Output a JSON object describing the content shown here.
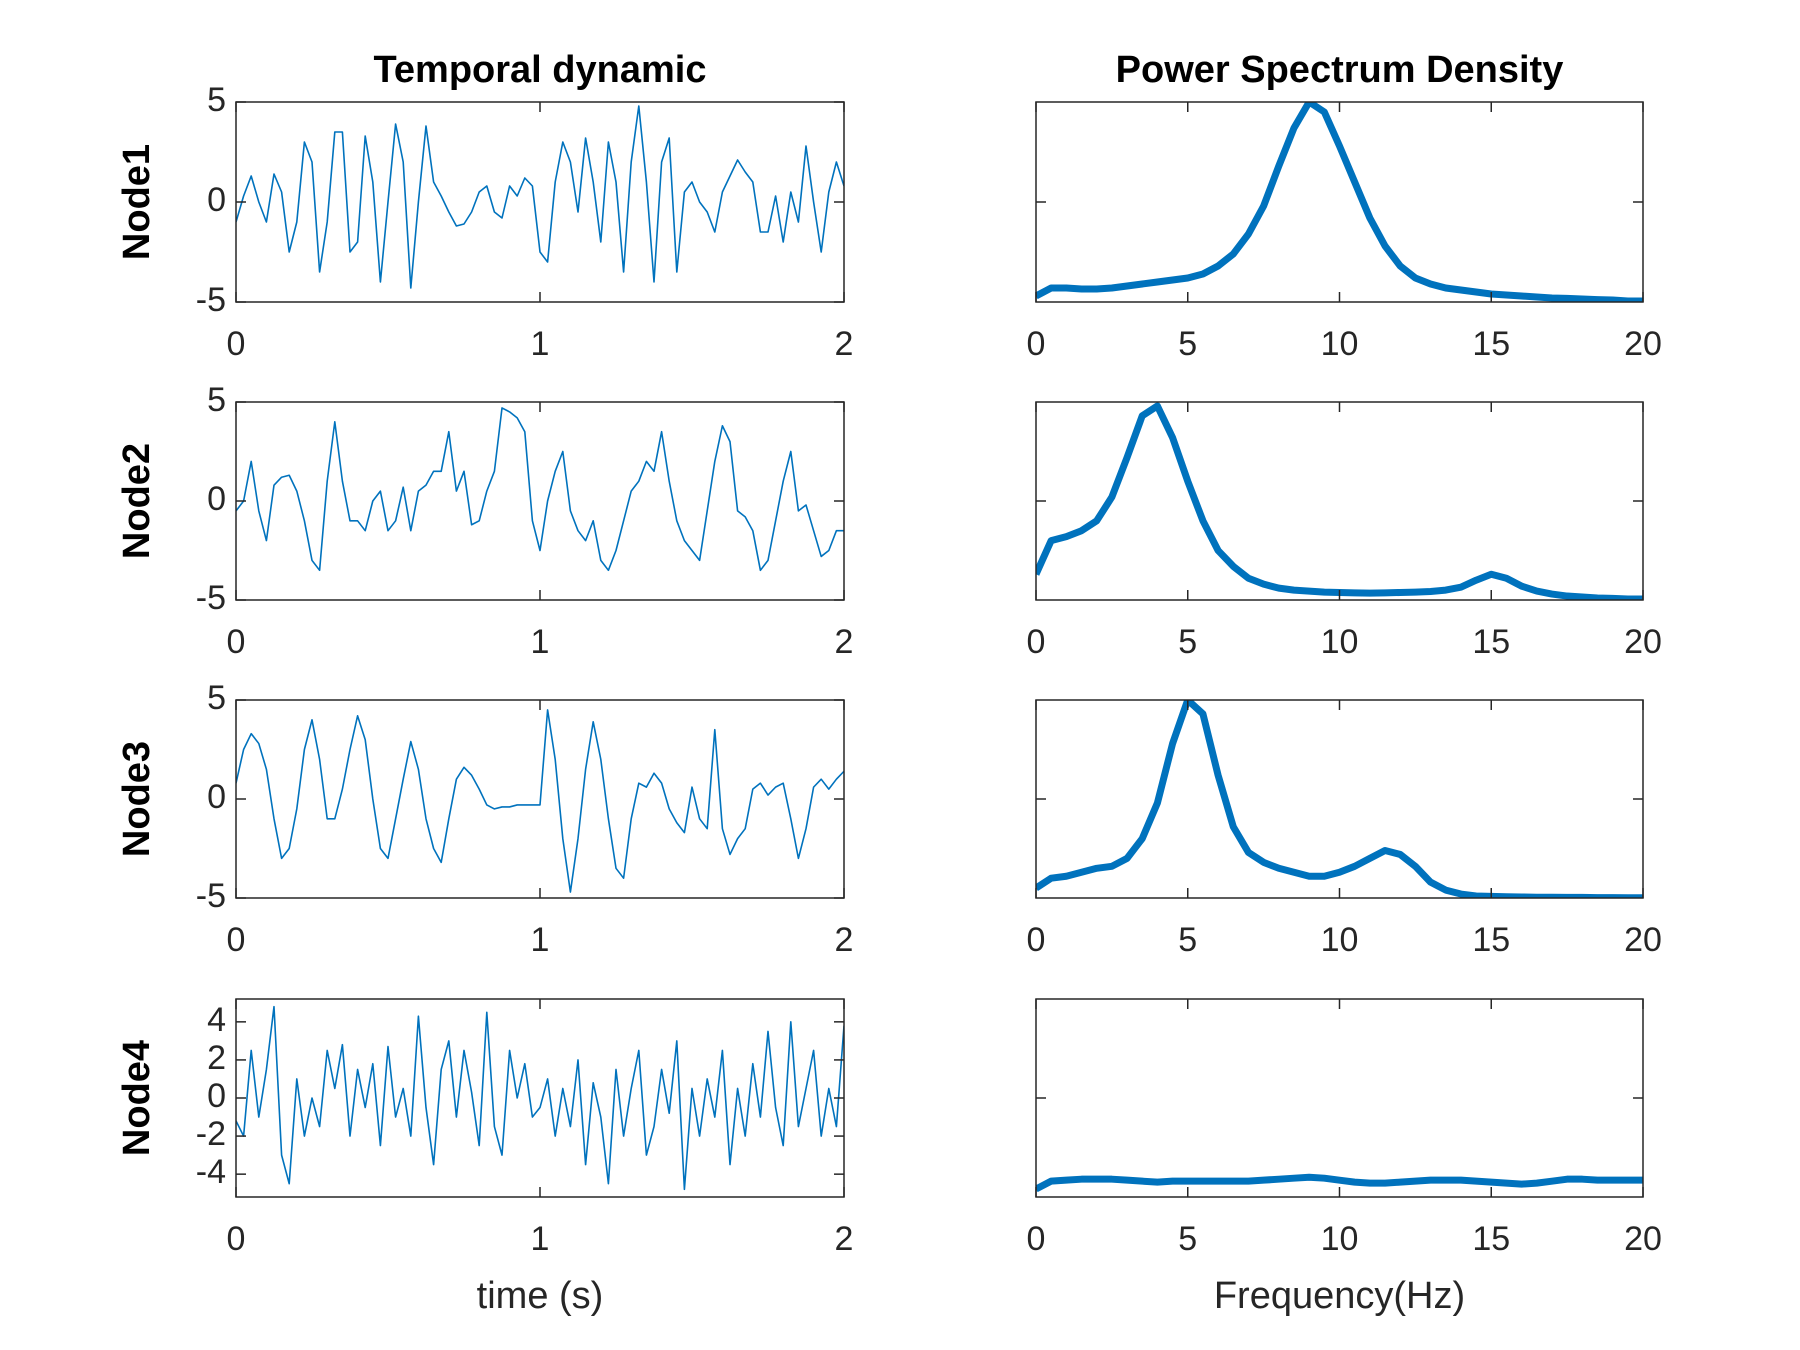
{
  "chart_data": [
    {
      "type": "line",
      "title": "Temporal dynamic",
      "ylabel": "Node1",
      "color": "#0072bd",
      "x": [
        0,
        0.025,
        0.05,
        0.075,
        0.1,
        0.125,
        0.15,
        0.175,
        0.2,
        0.225,
        0.25,
        0.275,
        0.3,
        0.325,
        0.35,
        0.375,
        0.4,
        0.425,
        0.45,
        0.475,
        0.5,
        0.525,
        0.55,
        0.575,
        0.6,
        0.625,
        0.65,
        0.675,
        0.7,
        0.725,
        0.75,
        0.775,
        0.8,
        0.825,
        0.85,
        0.875,
        0.9,
        0.925,
        0.95,
        0.975,
        1,
        1.025,
        1.05,
        1.075,
        1.1,
        1.125,
        1.15,
        1.175,
        1.2,
        1.225,
        1.25,
        1.275,
        1.3,
        1.325,
        1.35,
        1.375,
        1.4,
        1.425,
        1.45,
        1.475,
        1.5,
        1.525,
        1.55,
        1.575,
        1.6,
        1.625,
        1.65,
        1.675,
        1.7,
        1.725,
        1.75,
        1.775,
        1.8,
        1.825,
        1.85,
        1.875,
        1.9,
        1.925,
        1.95,
        1.975,
        2
      ],
      "values": [
        -1,
        0.3,
        1.3,
        0,
        -1,
        1.4,
        0.5,
        -2.5,
        -1,
        3,
        2,
        -3.5,
        -1,
        3.5,
        3.5,
        -2.5,
        -2,
        3.3,
        1,
        -4,
        0,
        3.9,
        2,
        -4.3,
        0,
        3.8,
        1,
        0.3,
        -0.5,
        -1.2,
        -1.1,
        -0.5,
        0.5,
        0.8,
        -0.5,
        -0.8,
        0.8,
        0.3,
        1.2,
        0.8,
        -2.5,
        -3,
        1,
        3,
        2,
        -0.5,
        3.2,
        1,
        -2,
        3,
        1,
        -3.5,
        2,
        4.8,
        1,
        -4,
        2,
        3.2,
        -3.5,
        0.5,
        1,
        0,
        -0.5,
        -1.5,
        0.5,
        1.3,
        2.1,
        1.5,
        1,
        -1.5,
        -1.5,
        0.3,
        -2,
        0.5,
        -1,
        2.8,
        0,
        -2.5,
        0.5,
        2,
        0.8
      ],
      "xlim": [
        0,
        2
      ],
      "xticks": [
        0,
        1,
        2
      ],
      "ylim": [
        -5,
        5
      ],
      "yticks": [
        -5,
        0,
        5
      ]
    },
    {
      "type": "line",
      "title": "Power Spectrum Density",
      "color": "#0072bd",
      "x": [
        0,
        0.5,
        1,
        1.5,
        2,
        2.5,
        3,
        3.5,
        4,
        4.5,
        5,
        5.5,
        6,
        6.5,
        7,
        7.5,
        8,
        8.5,
        9,
        9.5,
        10,
        10.5,
        11,
        11.5,
        12,
        12.5,
        13,
        13.5,
        14,
        14.5,
        15,
        15.5,
        16,
        16.5,
        17,
        17.5,
        18,
        18.5,
        19,
        19.5,
        20
      ],
      "values": [
        0.03,
        0.07,
        0.07,
        0.065,
        0.065,
        0.07,
        0.08,
        0.09,
        0.1,
        0.11,
        0.12,
        0.14,
        0.18,
        0.24,
        0.34,
        0.48,
        0.68,
        0.87,
        1.0,
        0.95,
        0.78,
        0.6,
        0.42,
        0.28,
        0.18,
        0.12,
        0.09,
        0.07,
        0.06,
        0.05,
        0.04,
        0.035,
        0.03,
        0.025,
        0.02,
        0.018,
        0.015,
        0.012,
        0.01,
        0.005,
        0.005
      ],
      "xlim": [
        0,
        20
      ],
      "xticks": [
        0,
        5,
        10,
        15,
        20
      ],
      "ylim": [
        0,
        1
      ]
    },
    {
      "type": "line",
      "ylabel": "Node2",
      "color": "#0072bd",
      "x": [
        0,
        0.025,
        0.05,
        0.075,
        0.1,
        0.125,
        0.15,
        0.175,
        0.2,
        0.225,
        0.25,
        0.275,
        0.3,
        0.325,
        0.35,
        0.375,
        0.4,
        0.425,
        0.45,
        0.475,
        0.5,
        0.525,
        0.55,
        0.575,
        0.6,
        0.625,
        0.65,
        0.675,
        0.7,
        0.725,
        0.75,
        0.775,
        0.8,
        0.825,
        0.85,
        0.875,
        0.9,
        0.925,
        0.95,
        0.975,
        1,
        1.025,
        1.05,
        1.075,
        1.1,
        1.125,
        1.15,
        1.175,
        1.2,
        1.225,
        1.25,
        1.275,
        1.3,
        1.325,
        1.35,
        1.375,
        1.4,
        1.425,
        1.45,
        1.475,
        1.5,
        1.525,
        1.55,
        1.575,
        1.6,
        1.625,
        1.65,
        1.675,
        1.7,
        1.725,
        1.75,
        1.775,
        1.8,
        1.825,
        1.85,
        1.875,
        1.9,
        1.925,
        1.95,
        1.975,
        2
      ],
      "values": [
        -0.5,
        0,
        2,
        -0.5,
        -2,
        0.8,
        1.2,
        1.3,
        0.5,
        -1,
        -3,
        -3.5,
        1,
        4,
        1,
        -1,
        -1,
        -1.5,
        0,
        0.5,
        -1.5,
        -1,
        0.7,
        -1.5,
        0.5,
        0.8,
        1.5,
        1.5,
        3.5,
        0.5,
        1.5,
        -1.2,
        -1,
        0.5,
        1.5,
        4.7,
        4.5,
        4.2,
        3.5,
        -1,
        -2.5,
        0,
        1.5,
        2.5,
        -0.5,
        -1.5,
        -2,
        -1,
        -3,
        -3.5,
        -2.5,
        -1,
        0.5,
        1,
        2,
        1.5,
        3.5,
        1,
        -1,
        -2,
        -2.5,
        -3,
        -0.5,
        2,
        3.8,
        3,
        -0.5,
        -0.8,
        -1.5,
        -3.5,
        -3,
        -1,
        1,
        2.5,
        -0.5,
        -0.2,
        -1.5,
        -2.8,
        -2.5,
        -1.5,
        -1.5
      ],
      "xlim": [
        0,
        2
      ],
      "xticks": [
        0,
        1,
        2
      ],
      "ylim": [
        -5,
        5
      ],
      "yticks": [
        -5,
        0,
        5
      ]
    },
    {
      "type": "line",
      "color": "#0072bd",
      "x": [
        0,
        0.5,
        1,
        1.5,
        2,
        2.5,
        3,
        3.5,
        4,
        4.5,
        5,
        5.5,
        6,
        6.5,
        7,
        7.5,
        8,
        8.5,
        9,
        9.5,
        10,
        10.5,
        11,
        11.5,
        12,
        12.5,
        13,
        13.5,
        14,
        14.5,
        15,
        15.5,
        16,
        16.5,
        17,
        17.5,
        18,
        18.5,
        19,
        19.5,
        20
      ],
      "values": [
        0.13,
        0.3,
        0.32,
        0.35,
        0.4,
        0.52,
        0.72,
        0.93,
        0.98,
        0.82,
        0.6,
        0.4,
        0.25,
        0.17,
        0.11,
        0.08,
        0.06,
        0.05,
        0.045,
        0.04,
        0.038,
        0.036,
        0.035,
        0.036,
        0.038,
        0.04,
        0.043,
        0.05,
        0.065,
        0.1,
        0.13,
        0.11,
        0.07,
        0.045,
        0.03,
        0.02,
        0.015,
        0.01,
        0.008,
        0.005,
        0.005
      ],
      "xlim": [
        0,
        20
      ],
      "xticks": [
        0,
        5,
        10,
        15,
        20
      ],
      "ylim": [
        0,
        1
      ]
    },
    {
      "type": "line",
      "ylabel": "Node3",
      "color": "#0072bd",
      "x": [
        0,
        0.025,
        0.05,
        0.075,
        0.1,
        0.125,
        0.15,
        0.175,
        0.2,
        0.225,
        0.25,
        0.275,
        0.3,
        0.325,
        0.35,
        0.375,
        0.4,
        0.425,
        0.45,
        0.475,
        0.5,
        0.525,
        0.55,
        0.575,
        0.6,
        0.625,
        0.65,
        0.675,
        0.7,
        0.725,
        0.75,
        0.775,
        0.8,
        0.825,
        0.85,
        0.875,
        0.9,
        0.925,
        0.95,
        0.975,
        1,
        1.025,
        1.05,
        1.075,
        1.1,
        1.125,
        1.15,
        1.175,
        1.2,
        1.225,
        1.25,
        1.275,
        1.3,
        1.325,
        1.35,
        1.375,
        1.4,
        1.425,
        1.45,
        1.475,
        1.5,
        1.525,
        1.55,
        1.575,
        1.6,
        1.625,
        1.65,
        1.675,
        1.7,
        1.725,
        1.75,
        1.775,
        1.8,
        1.825,
        1.85,
        1.875,
        1.9,
        1.925,
        1.95,
        1.975,
        2
      ],
      "values": [
        0.8,
        2.5,
        3.3,
        2.8,
        1.5,
        -1,
        -3,
        -2.5,
        -0.5,
        2.5,
        4,
        2,
        -1,
        -1,
        0.5,
        2.5,
        4.2,
        3,
        0,
        -2.5,
        -3,
        -1,
        1,
        2.9,
        1.5,
        -1,
        -2.5,
        -3.2,
        -1,
        1,
        1.6,
        1.2,
        0.5,
        -0.3,
        -0.5,
        -0.4,
        -0.4,
        -0.3,
        -0.3,
        -0.3,
        -0.3,
        4.5,
        2,
        -2,
        -4.7,
        -2,
        1.5,
        3.9,
        2,
        -1,
        -3.5,
        -4,
        -1,
        0.8,
        0.6,
        1.3,
        0.8,
        -0.5,
        -1.2,
        -1.7,
        0.6,
        -1,
        -1.5,
        3.5,
        -1.5,
        -2.8,
        -2,
        -1.5,
        0.5,
        0.8,
        0.2,
        0.6,
        0.8,
        -1,
        -3,
        -1.5,
        0.6,
        1,
        0.5,
        1,
        1.4
      ],
      "xlim": [
        0,
        2
      ],
      "xticks": [
        0,
        1,
        2
      ],
      "ylim": [
        -5,
        5
      ],
      "yticks": [
        -5,
        0,
        5
      ]
    },
    {
      "type": "line",
      "color": "#0072bd",
      "x": [
        0,
        0.5,
        1,
        1.5,
        2,
        2.5,
        3,
        3.5,
        4,
        4.5,
        5,
        5.5,
        6,
        6.5,
        7,
        7.5,
        8,
        8.5,
        9,
        9.5,
        10,
        10.5,
        11,
        11.5,
        12,
        12.5,
        13,
        13.5,
        14,
        14.5,
        15,
        15.5,
        16,
        16.5,
        17,
        17.5,
        18,
        18.5,
        19,
        19.5,
        20
      ],
      "values": [
        0.05,
        0.1,
        0.11,
        0.13,
        0.15,
        0.16,
        0.2,
        0.3,
        0.48,
        0.78,
        1.0,
        0.93,
        0.62,
        0.36,
        0.23,
        0.18,
        0.15,
        0.13,
        0.11,
        0.11,
        0.13,
        0.16,
        0.2,
        0.24,
        0.22,
        0.16,
        0.08,
        0.04,
        0.02,
        0.01,
        0.008,
        0.006,
        0.005,
        0.004,
        0.004,
        0.003,
        0.003,
        0.002,
        0.002,
        0.001,
        0.001
      ],
      "xlim": [
        0,
        20
      ],
      "xticks": [
        0,
        5,
        10,
        15,
        20
      ],
      "ylim": [
        0,
        1
      ]
    },
    {
      "type": "line",
      "ylabel": "Node4",
      "xlabel": "time (s)",
      "color": "#0072bd",
      "x": [
        0,
        0.025,
        0.05,
        0.075,
        0.1,
        0.125,
        0.15,
        0.175,
        0.2,
        0.225,
        0.25,
        0.275,
        0.3,
        0.325,
        0.35,
        0.375,
        0.4,
        0.425,
        0.45,
        0.475,
        0.5,
        0.525,
        0.55,
        0.575,
        0.6,
        0.625,
        0.65,
        0.675,
        0.7,
        0.725,
        0.75,
        0.775,
        0.8,
        0.825,
        0.85,
        0.875,
        0.9,
        0.925,
        0.95,
        0.975,
        1,
        1.025,
        1.05,
        1.075,
        1.1,
        1.125,
        1.15,
        1.175,
        1.2,
        1.225,
        1.25,
        1.275,
        1.3,
        1.325,
        1.35,
        1.375,
        1.4,
        1.425,
        1.45,
        1.475,
        1.5,
        1.525,
        1.55,
        1.575,
        1.6,
        1.625,
        1.65,
        1.675,
        1.7,
        1.725,
        1.75,
        1.775,
        1.8,
        1.825,
        1.85,
        1.875,
        1.9,
        1.925,
        1.95,
        1.975,
        2
      ],
      "values": [
        -1.2,
        -2,
        2.5,
        -1,
        1.5,
        4.8,
        -3,
        -4.5,
        1,
        -2,
        0,
        -1.5,
        2.5,
        0.5,
        2.8,
        -2,
        1.5,
        -0.5,
        1.8,
        -2.5,
        2.7,
        -1,
        0.5,
        -2,
        4.3,
        -0.5,
        -3.5,
        1.5,
        3,
        -1,
        2.5,
        0.3,
        -2.5,
        4.5,
        -1.5,
        -3,
        2.5,
        0,
        1.8,
        -1,
        -0.5,
        1,
        -2,
        0.5,
        -1.5,
        2,
        -3.5,
        0.8,
        -1,
        -4.5,
        1.5,
        -2,
        0.5,
        2.5,
        -3,
        -1.5,
        1.5,
        -0.8,
        3,
        -4.8,
        0.5,
        -2,
        1,
        -1,
        2.5,
        -3.5,
        0.5,
        -2,
        1.8,
        -1,
        3.5,
        -0.5,
        -2.5,
        4,
        -1.5,
        0.5,
        2.5,
        -2,
        0.5,
        -1.5,
        3.8
      ],
      "xlim": [
        0,
        2
      ],
      "xticks": [
        0,
        1,
        2
      ],
      "ylim": [
        -5.2,
        5.2
      ],
      "yticks": [
        -4,
        -2,
        0,
        2,
        4
      ]
    },
    {
      "type": "line",
      "xlabel": "Frequency(Hz)",
      "color": "#0072bd",
      "x": [
        0,
        0.5,
        1,
        1.5,
        2,
        2.5,
        3,
        3.5,
        4,
        4.5,
        5,
        5.5,
        6,
        6.5,
        7,
        7.5,
        8,
        8.5,
        9,
        9.5,
        10,
        10.5,
        11,
        11.5,
        12,
        12.5,
        13,
        13.5,
        14,
        14.5,
        15,
        15.5,
        16,
        16.5,
        17,
        17.5,
        18,
        18.5,
        19,
        19.5,
        20
      ],
      "values": [
        0.04,
        0.08,
        0.085,
        0.09,
        0.09,
        0.09,
        0.085,
        0.08,
        0.075,
        0.08,
        0.08,
        0.08,
        0.08,
        0.08,
        0.08,
        0.085,
        0.09,
        0.095,
        0.1,
        0.095,
        0.085,
        0.075,
        0.07,
        0.07,
        0.075,
        0.08,
        0.085,
        0.085,
        0.085,
        0.08,
        0.075,
        0.07,
        0.065,
        0.07,
        0.08,
        0.09,
        0.09,
        0.085,
        0.085,
        0.085,
        0.085
      ],
      "xlim": [
        0,
        20
      ],
      "xticks": [
        0,
        5,
        10,
        15,
        20
      ],
      "ylim": [
        0,
        1
      ]
    }
  ]
}
